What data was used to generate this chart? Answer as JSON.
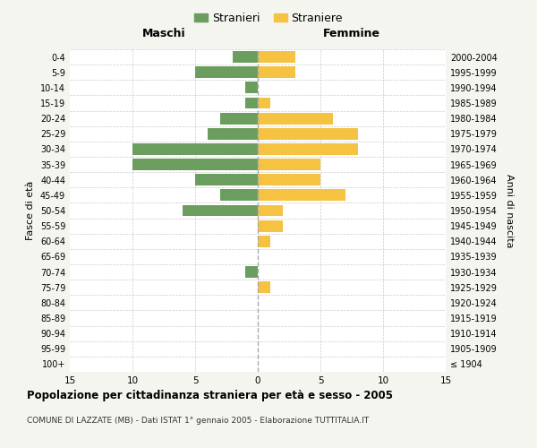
{
  "age_groups": [
    "100+",
    "95-99",
    "90-94",
    "85-89",
    "80-84",
    "75-79",
    "70-74",
    "65-69",
    "60-64",
    "55-59",
    "50-54",
    "45-49",
    "40-44",
    "35-39",
    "30-34",
    "25-29",
    "20-24",
    "15-19",
    "10-14",
    "5-9",
    "0-4"
  ],
  "birth_years": [
    "≤ 1904",
    "1905-1909",
    "1910-1914",
    "1915-1919",
    "1920-1924",
    "1925-1929",
    "1930-1934",
    "1935-1939",
    "1940-1944",
    "1945-1949",
    "1950-1954",
    "1955-1959",
    "1960-1964",
    "1965-1969",
    "1970-1974",
    "1975-1979",
    "1980-1984",
    "1985-1989",
    "1990-1994",
    "1995-1999",
    "2000-2004"
  ],
  "males": [
    0,
    0,
    0,
    0,
    0,
    0,
    1,
    0,
    0,
    0,
    6,
    3,
    5,
    10,
    10,
    4,
    3,
    1,
    1,
    5,
    2
  ],
  "females": [
    0,
    0,
    0,
    0,
    0,
    1,
    0,
    0,
    1,
    2,
    2,
    7,
    5,
    5,
    8,
    8,
    6,
    1,
    0,
    3,
    3
  ],
  "male_color": "#6b9e5e",
  "female_color": "#f5c242",
  "xlim": 15,
  "title": "Popolazione per cittadinanza straniera per età e sesso - 2005",
  "subtitle": "COMUNE DI LAZZATE (MB) - Dati ISTAT 1° gennaio 2005 - Elaborazione TUTTITALIA.IT",
  "ylabel_left": "Fasce di età",
  "ylabel_right": "Anni di nascita",
  "xlabel_left": "Maschi",
  "xlabel_right": "Femmine",
  "legend_male": "Stranieri",
  "legend_female": "Straniere",
  "background_color": "#f5f5f0",
  "bar_background": "#ffffff"
}
